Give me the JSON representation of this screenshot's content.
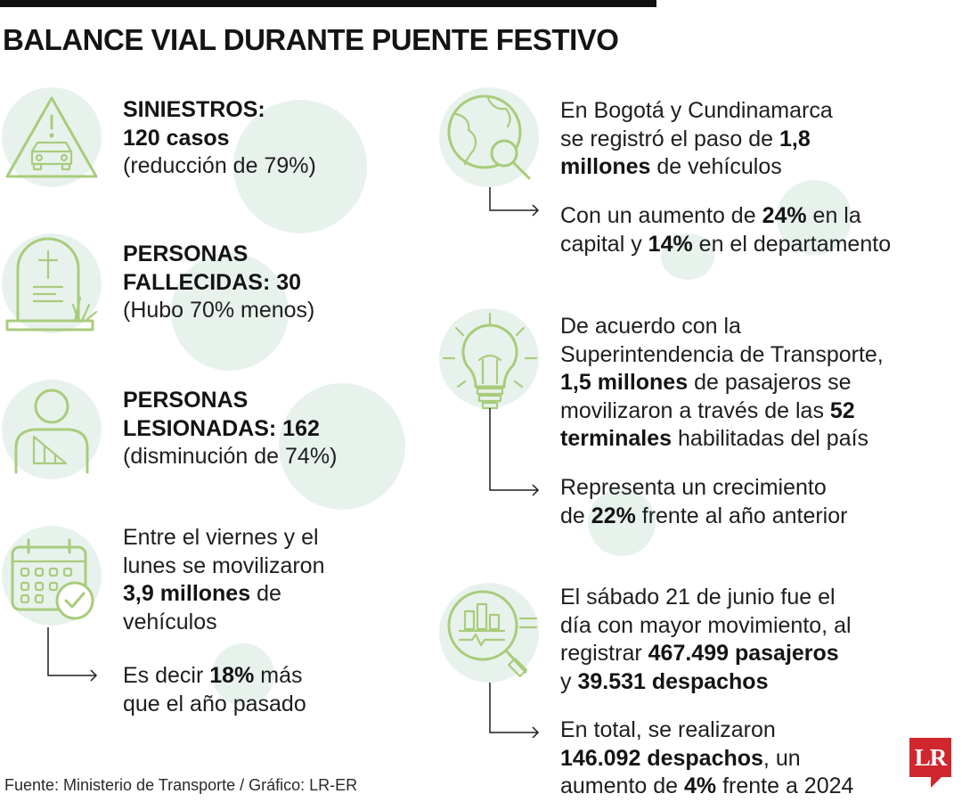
{
  "header": {
    "title": "BALANCE VIAL DURANTE PUENTE FESTIVO"
  },
  "left": {
    "siniestros": {
      "head": "SINIESTROS:",
      "value": "120 casos",
      "note": "(reducción de 79%)"
    },
    "fallecidas": {
      "head1": "PERSONAS",
      "head2": "FALLECIDAS: 30",
      "note": "(Hubo 70% menos)"
    },
    "lesionadas": {
      "head1": "PERSONAS",
      "head2": "LESIONADAS: 162",
      "note": "(disminución de 74%)"
    },
    "vehiculos": {
      "line1": "Entre el viernes y el",
      "line2": "lunes se movilizaron",
      "bold": "3,9 millones",
      "after": " de",
      "line4": "vehículos",
      "sub_pre": "Es decir ",
      "sub_bold": "18%",
      "sub_post": " más",
      "sub_line2": "que el año pasado"
    }
  },
  "right": {
    "bogota": {
      "line1": "En Bogotá y Cundinamarca",
      "line2_pre": "se registró el paso de ",
      "line2_bold": "1,8",
      "line3_bold": "millones",
      "line3_post": " de vehículos",
      "sub1_pre": "Con un aumento de ",
      "sub1_bold": "24%",
      "sub1_post": " en la",
      "sub2_pre": "capital y ",
      "sub2_bold": "14%",
      "sub2_post": " en el departamento"
    },
    "terminales": {
      "line1": "De acuerdo con la",
      "line2": "Superintendencia de Transporte,",
      "line3_bold": "1,5 millones",
      "line3_post": " de pasajeros se",
      "line4_pre": "movilizaron a través de las ",
      "line4_bold": "52",
      "line5_bold": "terminales",
      "line5_post": " habilitadas del país",
      "sub1": "Representa un crecimiento",
      "sub2_pre": "de ",
      "sub2_bold": "22%",
      "sub2_post": " frente al año anterior"
    },
    "sabado": {
      "line1": "El sábado 21 de junio fue el",
      "line2": "día con mayor movimiento, al",
      "line3_pre": "registrar ",
      "line3_bold": "467.499 pasajeros",
      "line4_pre": "y ",
      "line4_bold": "39.531 despachos",
      "sub1": "En total, se realizaron",
      "sub2_bold": "146.092 despachos",
      "sub2_post": ", un",
      "sub3_pre": "aumento de ",
      "sub3_bold": "4%",
      "sub3_post": " frente a 2024"
    }
  },
  "footer": {
    "source": "Fuente: Ministerio de Transporte / Gráfico: LR-ER",
    "logo": "LR"
  },
  "colors": {
    "icon_green": "#a8cc7c",
    "blob_green": "#e8f2ec",
    "logo_red": "#d0262e"
  }
}
